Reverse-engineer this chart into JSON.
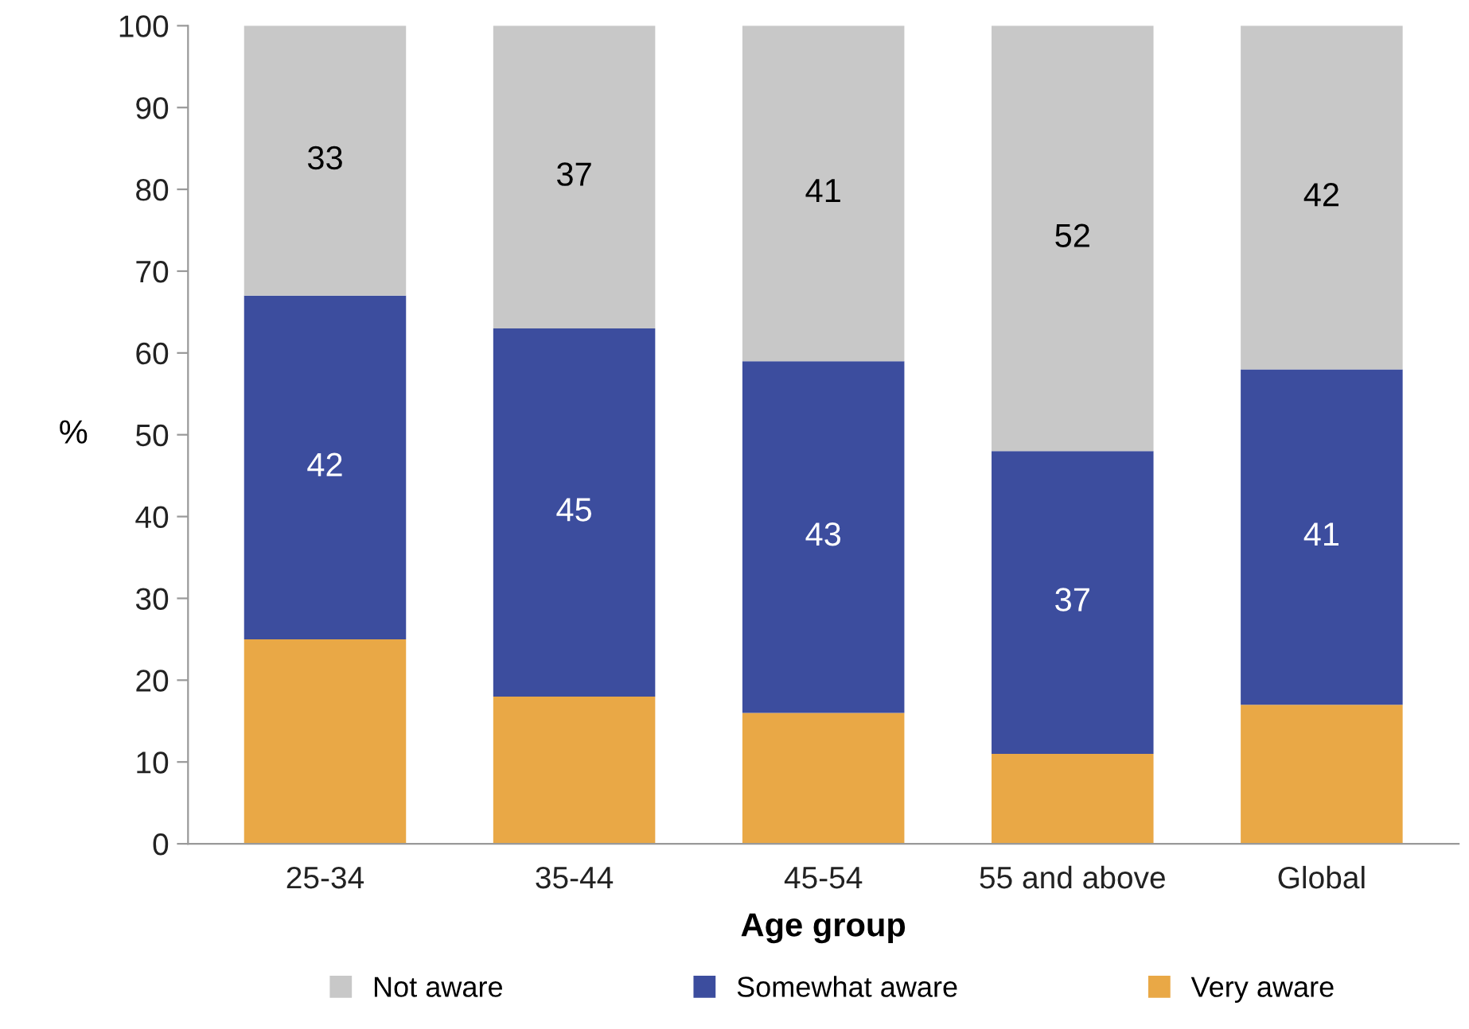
{
  "chart_data": {
    "type": "bar",
    "stacked": true,
    "xlabel": "Age group",
    "ylabel": "%",
    "categories": [
      "25-34",
      "35-44",
      "45-54",
      "55 and above",
      "Global"
    ],
    "series": [
      {
        "name": "Very aware",
        "color": "#e9a846",
        "values": [
          25,
          18,
          16,
          11,
          17
        ]
      },
      {
        "name": "Somewhat aware",
        "color": "#3c4d9e",
        "values": [
          42,
          45,
          43,
          37,
          41
        ],
        "value_labels": [
          "42",
          "45",
          "43",
          "37",
          "41"
        ]
      },
      {
        "name": "Not aware",
        "color": "#c8c8c8",
        "values": [
          33,
          37,
          41,
          52,
          42
        ],
        "value_labels": [
          "33",
          "37",
          "41",
          "52",
          "42"
        ]
      }
    ],
    "ylim": [
      0,
      100
    ],
    "yticks": [
      0,
      10,
      20,
      30,
      40,
      50,
      60,
      70,
      80,
      90,
      100
    ],
    "grid": false,
    "legend": "bottom"
  }
}
